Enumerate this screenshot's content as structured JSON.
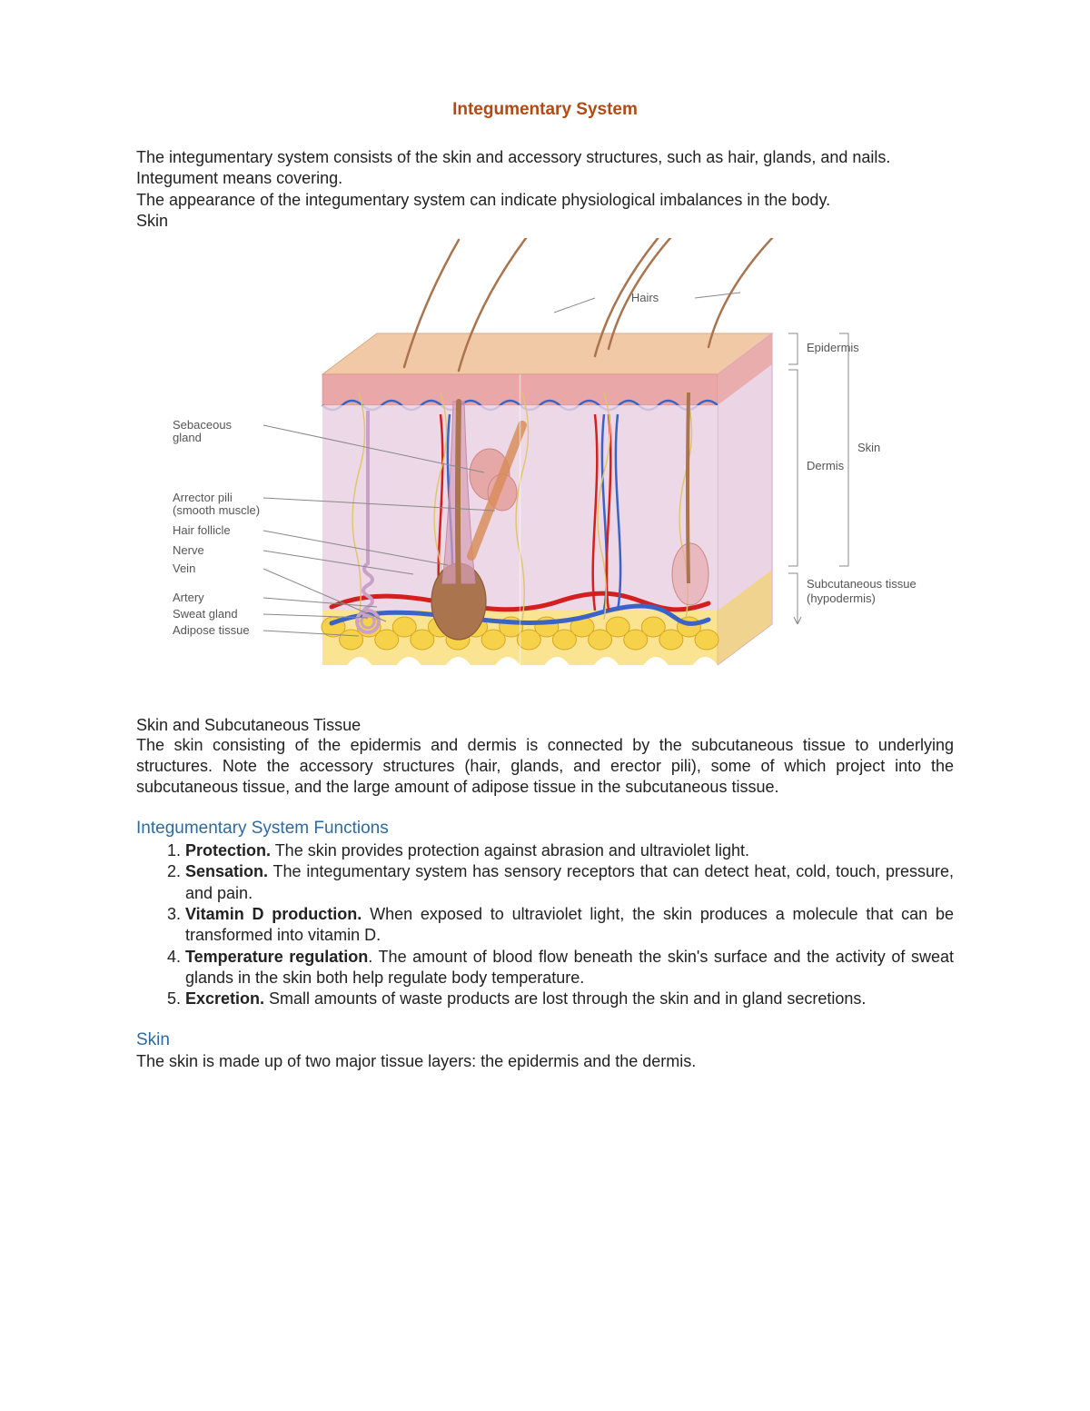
{
  "colors": {
    "title": "#b24a16",
    "heading": "#2d6aa0",
    "body": "#222222",
    "leader": "#888888",
    "label": "#555555",
    "epidermis_top": "#f2c9a6",
    "epidermis_band": "#e9a8a7",
    "dermis": "#e9d1e2",
    "subq": "#f6d24a",
    "hair": "#a9744e",
    "artery": "#d41f1f",
    "vein": "#3b63c5",
    "nerve": "#e0c46a",
    "gland": "#e6a7a7",
    "follicle_wall": "#d7a0b8",
    "adipose_stroke": "#d8a620"
  },
  "title": "Integumentary System",
  "intro": {
    "p1": "The integumentary system consists of the skin and accessory structures, such as hair, glands, and nails.",
    "p2": "Integument means covering.",
    "p3": "The appearance of the integumentary system can indicate physiological imbalances in the body.",
    "p4": "Skin"
  },
  "diagram": {
    "left_labels": {
      "sebaceous": "Sebaceous\ngland",
      "arrector": "Arrector pili\n(smooth muscle)",
      "follicle": "Hair follicle",
      "nerve": "Nerve",
      "vein": "Vein",
      "artery": "Artery",
      "sweat": "Sweat gland",
      "adipose": "Adipose tissue"
    },
    "top_label": "Hairs",
    "right_labels": {
      "epidermis": "Epidermis",
      "skin": "Skin",
      "dermis": "Dermis",
      "subq1": "Subcutaneous tissue",
      "subq2": "(hypodermis)"
    }
  },
  "caption": {
    "head": "Skin and Subcutaneous Tissue",
    "body": "The skin consisting of the epidermis and dermis is connected by the subcutaneous tissue to underlying structures. Note the accessory structures (hair, glands, and erector pili), some of which project into the subcutaneous tissue, and the large amount of adipose tissue in the subcutaneous  tissue."
  },
  "functions": {
    "heading": "Integumentary System Functions",
    "items": [
      {
        "label": "Protection.",
        "text": " The skin provides protection against abrasion and ultraviolet light."
      },
      {
        "label": "Sensation.",
        "text": " The integumentary system has sensory receptors that can detect heat, cold, touch, pressure, and pain."
      },
      {
        "label": "Vitamin D production.",
        "text": "  When exposed to ultraviolet light,  the skin produces a molecule that can be transformed into vitamin D."
      },
      {
        "label": "Temperature regulation",
        "text": ".  The amount of blood flow beneath the skin's surface and the activity of sweat glands in the skin both help regulate body temperature."
      },
      {
        "label": "Excretion.",
        "text": " Small amounts of waste products are lost through the skin and in gland secretions."
      }
    ]
  },
  "skin_section": {
    "heading": "Skin",
    "body": "The skin is made up of two major tissue layers: the epidermis and the dermis."
  }
}
